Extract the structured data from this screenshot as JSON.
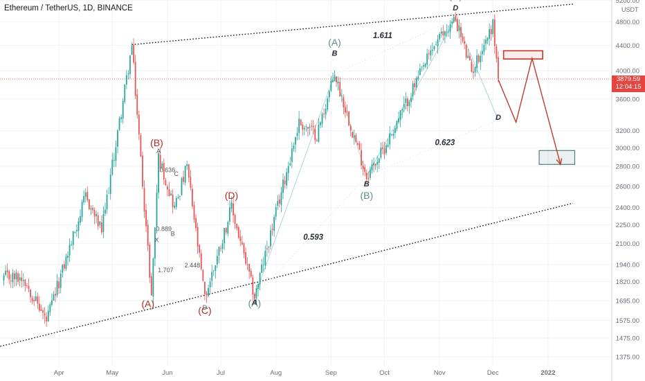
{
  "header": {
    "title": "Ethereum / TetherUS, 1D, BINANCE",
    "currency": "USDT"
  },
  "last_price": {
    "value": "3879.59",
    "countdown": "12:04:15"
  },
  "colors": {
    "up": "#26a69a",
    "down": "#ef5350",
    "wave_red": "#b5291d",
    "wave_teal": "#5e8c87",
    "projection": "#c0392b",
    "target_box": "#4e7f7b",
    "axis_text": "#6a6d78"
  },
  "chart_data": {
    "type": "candlestick",
    "symbol": "Ethereum / TetherUS",
    "interval": "1D",
    "exchange": "BINANCE",
    "y_scale": "log",
    "ylim": [
      1330,
      5250
    ],
    "y_ticks": [
      "5200.00",
      "4800.00",
      "4400.00",
      "4000.00",
      "3600.00",
      "3200.00",
      "3000.00",
      "2800.00",
      "2600.00",
      "2400.00",
      "2250.00",
      "2100.00",
      "1940.00",
      "1820.00",
      "1695.00",
      "1575.00",
      "1475.00",
      "1375.00"
    ],
    "x_ticks": [
      "Apr",
      "May",
      "Jun",
      "Jul",
      "Aug",
      "Sep",
      "Oct",
      "Nov",
      "Dec",
      "2022"
    ],
    "pivots": [
      [
        "2021-03-12",
        1850
      ],
      [
        "2021-03-25",
        1570
      ],
      [
        "2021-04-16",
        2500
      ],
      [
        "2021-04-25",
        2200
      ],
      [
        "2021-05-12",
        4380
      ],
      [
        "2021-05-23",
        1730
      ],
      [
        "2021-05-27",
        2900
      ],
      [
        "2021-06-05",
        2400
      ],
      [
        "2021-06-12",
        2800
      ],
      [
        "2021-06-22",
        1710
      ],
      [
        "2021-07-07",
        2400
      ],
      [
        "2021-07-20",
        1720
      ],
      [
        "2021-08-14",
        3300
      ],
      [
        "2021-08-24",
        3150
      ],
      [
        "2021-09-03",
        3950
      ],
      [
        "2021-09-21",
        2700
      ],
      [
        "2021-10-01",
        3000
      ],
      [
        "2021-10-29",
        4400
      ],
      [
        "2021-11-10",
        4860
      ],
      [
        "2021-11-19",
        3980
      ],
      [
        "2021-12-01",
        4760
      ],
      [
        "2021-12-04",
        3900
      ]
    ],
    "wave_labels": [
      {
        "text": "(A)",
        "x": "2021-05-21",
        "y": 1655,
        "color": "red"
      },
      {
        "text": "(B)",
        "x": "2021-05-26",
        "y": 3020,
        "color": "red"
      },
      {
        "text": "(C)",
        "x": "2021-06-22",
        "y": 1615,
        "color": "red"
      },
      {
        "text": "(D)",
        "x": "2021-07-07",
        "y": 2480,
        "color": "red"
      },
      {
        "text": "(A)",
        "x": "2021-07-20",
        "y": 1660,
        "color": "teal"
      },
      {
        "text": "(A)",
        "x": "2021-09-03",
        "y": 4390,
        "color": "teal"
      },
      {
        "text": "(B)",
        "x": "2021-09-21",
        "y": 2480,
        "color": "teal"
      },
      {
        "text": "(C)",
        "x": "2021-11-10",
        "y": 5220,
        "color": "teal"
      }
    ],
    "pattern_points": [
      {
        "text": "A",
        "x": "2021-07-20",
        "y": 1670
      },
      {
        "text": "B",
        "x": "2021-09-03",
        "y": 4230
      },
      {
        "text": "B",
        "x": "2021-09-21",
        "y": 2600
      },
      {
        "text": "D",
        "x": "2021-11-10",
        "y": 5010
      },
      {
        "text": "D",
        "x": "2021-12-04",
        "y": 3330
      }
    ],
    "harmonic_small": [
      {
        "text": "A",
        "x": "2021-05-27",
        "y": 2940
      },
      {
        "text": "0.636",
        "x": "2021-06-01",
        "y": 2740
      },
      {
        "text": "C",
        "x": "2021-06-06",
        "y": 2700
      },
      {
        "text": "0.889",
        "x": "2021-05-30",
        "y": 2200
      },
      {
        "text": "B",
        "x": "2021-06-04",
        "y": 2160
      },
      {
        "text": "X",
        "x": "2021-05-26",
        "y": 2110
      },
      {
        "text": "1.707",
        "x": "2021-05-31",
        "y": 1885
      },
      {
        "text": "2.448",
        "x": "2021-06-15",
        "y": 1920
      },
      {
        "text": "D",
        "x": "2021-06-22",
        "y": 1640
      }
    ],
    "ratios": [
      {
        "text": "1.611",
        "x": "2021-09-30",
        "y": 4520
      },
      {
        "text": "0.623",
        "x": "2021-11-04",
        "y": 3030
      },
      {
        "text": "0.593",
        "x": "2021-08-22",
        "y": 2130
      }
    ],
    "trendlines": {
      "upper": [
        [
          "2021-05-12",
          4410
        ],
        [
          "2022-01-15",
          5130
        ]
      ],
      "lower": [
        [
          "2021-02-27",
          1430
        ],
        [
          "2022-01-15",
          2440
        ]
      ]
    },
    "projection_path": [
      [
        "2021-12-04",
        3870
      ],
      [
        "2021-12-14",
        3300
      ],
      [
        "2021-12-23",
        4190
      ],
      [
        "2022-01-08",
        2820
      ]
    ],
    "zones": [
      {
        "x1": "2021-12-07",
        "x2": "2021-12-29",
        "y_low": 4180,
        "y_high": 4310,
        "color": "red"
      },
      {
        "x1": "2021-12-27",
        "x2": "2022-01-16",
        "y_low": 2820,
        "y_high": 2970,
        "color": "teal"
      }
    ],
    "current_price_line": 3879.59
  }
}
